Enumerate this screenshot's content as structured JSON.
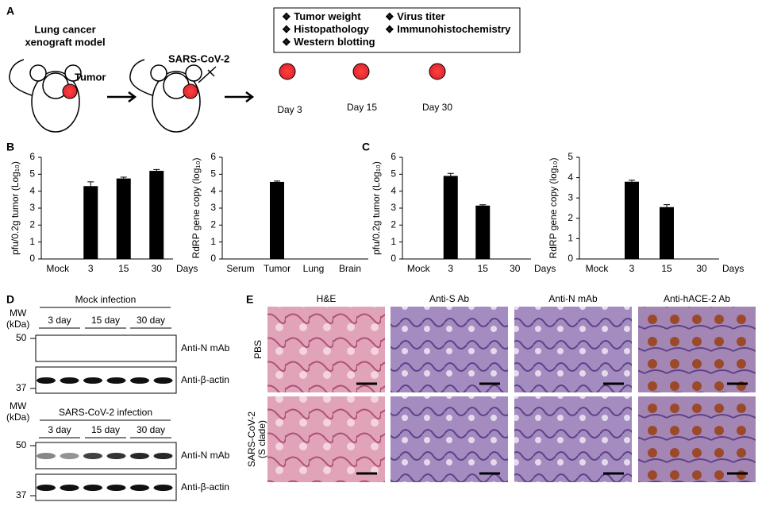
{
  "panels": [
    "A",
    "B",
    "C",
    "D",
    "E"
  ],
  "panel_a": {
    "model": [
      "Lung cancer",
      "xenograft model"
    ],
    "tumor": "Tumor",
    "virus": "SARS-CoV-2",
    "box_items": [
      "Tumor weight",
      "Virus titer",
      "Histopathology",
      "Immunohistochemistry",
      "Western blotting"
    ],
    "days": [
      "Day 3",
      "Day 15",
      "Day 30"
    ]
  },
  "chart_data": [
    {
      "type": "bar",
      "ylabel": "pfu/0.2g tumor (Log₁₀)",
      "xlabel": "Days",
      "categories": [
        "Mock",
        "3",
        "15",
        "30"
      ],
      "values": [
        0,
        4.3,
        4.75,
        5.2
      ],
      "errors": [
        0,
        0.25,
        0.08,
        0.08
      ],
      "color": "#000000",
      "ylim": [
        0,
        6
      ],
      "yticks": [
        0,
        1,
        2,
        3,
        4,
        5,
        6
      ]
    },
    {
      "type": "bar",
      "ylabel": "RdRP gene copy (log₁₀)",
      "categories": [
        "Serum",
        "Tumor",
        "Lung",
        "Brain"
      ],
      "values": [
        0,
        4.55,
        0,
        0
      ],
      "errors": [
        0,
        0.05,
        0,
        0
      ],
      "color": "#000000",
      "ylim": [
        0,
        6
      ],
      "yticks": [
        0,
        1,
        2,
        3,
        4,
        5,
        6
      ]
    },
    {
      "type": "bar",
      "ylabel": "pfu/0.2g tumor (Log₁₀)",
      "xlabel": "Days",
      "categories": [
        "Mock",
        "3",
        "15",
        "30"
      ],
      "values": [
        0,
        4.9,
        3.15,
        0
      ],
      "errors": [
        0,
        0.15,
        0.05,
        0
      ],
      "color": "#000000",
      "ylim": [
        0,
        6
      ],
      "yticks": [
        0,
        1,
        2,
        3,
        4,
        5,
        6
      ]
    },
    {
      "type": "bar",
      "ylabel": "RdRP gene copy (log₁₀)",
      "xlabel": "Days",
      "categories": [
        "Mock",
        "3",
        "15",
        "30"
      ],
      "values": [
        0,
        3.8,
        2.55,
        0
      ],
      "errors": [
        0,
        0.07,
        0.12,
        0
      ],
      "color": "#000000",
      "ylim": [
        0,
        5
      ],
      "yticks": [
        0,
        1,
        2,
        3,
        4,
        5
      ]
    }
  ],
  "panel_d": {
    "mw": [
      "MW",
      "(kDa)"
    ],
    "mock": "Mock infection",
    "infection": "SARS-CoV-2 infection",
    "days": [
      "3 day",
      "15 day",
      "30 day"
    ],
    "markers": [
      "50",
      "37"
    ],
    "antibodies": [
      "Anti-N mAb",
      "Anti-β-actin"
    ]
  },
  "panel_e": {
    "columns": [
      "H&E",
      "Anti-S Ab",
      "Anti-N mAb",
      "Anti-hACE-2 Ab"
    ],
    "rows": [
      "PBS",
      "SARS-CoV-2",
      "(S clade)"
    ]
  }
}
